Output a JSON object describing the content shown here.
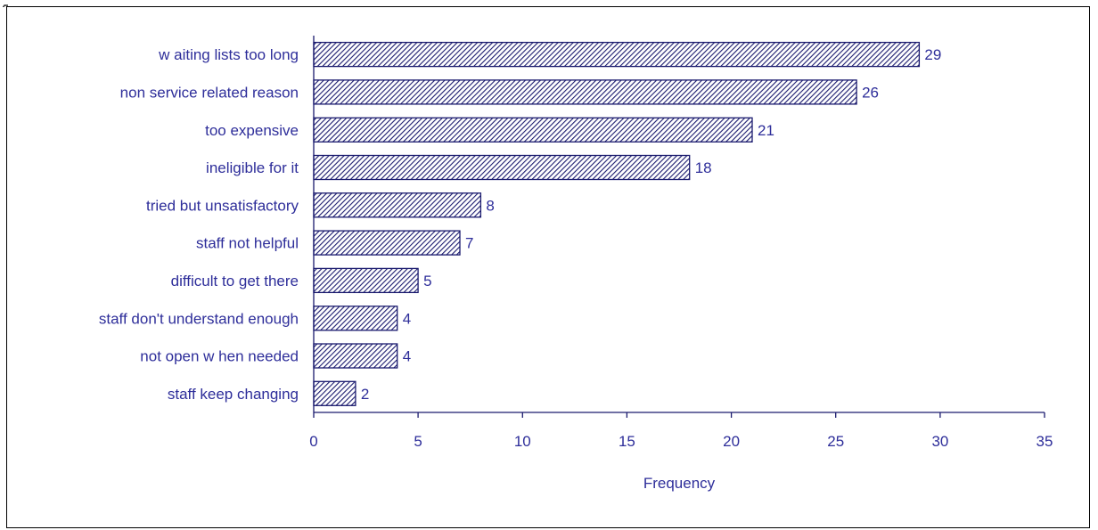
{
  "chart_data": {
    "type": "bar",
    "orientation": "horizontal",
    "title": "",
    "xlabel": "Frequency",
    "ylabel": "",
    "categories": [
      "w aiting lists too long",
      "non service related reason",
      "too expensive",
      "ineligible for it",
      "tried but unsatisfactory",
      "staff not helpful",
      "difficult to get there",
      "staff don't understand enough",
      "not open w hen needed",
      "staff keep changing"
    ],
    "values": [
      29,
      26,
      21,
      18,
      8,
      7,
      5,
      4,
      4,
      2
    ],
    "value_labels": [
      "29",
      "26",
      "21",
      "18",
      "8",
      "7",
      "5",
      "4",
      "4",
      "2"
    ],
    "xlim": [
      0,
      35
    ],
    "x_ticks": [
      0,
      5,
      10,
      15,
      20,
      25,
      30,
      35
    ],
    "x_tick_labels": [
      "0",
      "5",
      "10",
      "15",
      "20",
      "25",
      "30",
      "35"
    ],
    "grid": false,
    "legend": "none",
    "bar_fill": "diagonal-hatch",
    "colors": {
      "text": "#2e2e9a",
      "bar_outline": "#1a1a6e",
      "hatch": "#1a1a6e",
      "axis": "#1a1a6e",
      "frame": "#000000"
    }
  }
}
